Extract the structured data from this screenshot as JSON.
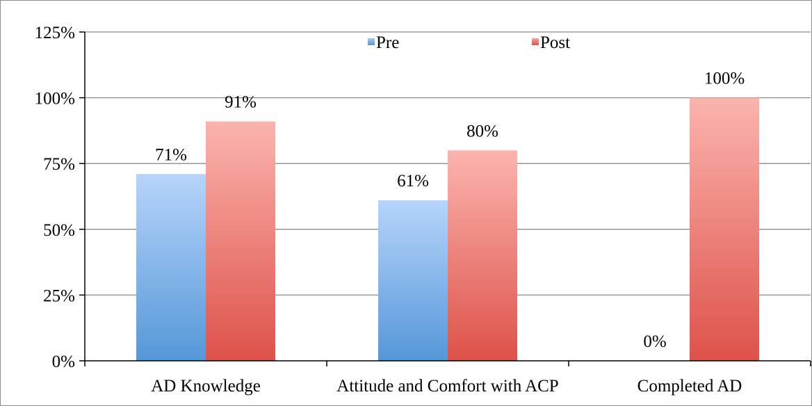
{
  "chart_data": {
    "type": "bar",
    "categories": [
      "AD Knowledge",
      "Attitude and Comfort with ACP",
      "Completed AD"
    ],
    "series": [
      {
        "name": "Pre",
        "values": [
          71,
          61,
          0
        ],
        "labels": [
          "71%",
          "61%",
          "0%"
        ],
        "color": "#5b9bd5"
      },
      {
        "name": "Post",
        "values": [
          91,
          80,
          100
        ],
        "labels": [
          "91%",
          "80%",
          "100%"
        ],
        "color": "#e0504a"
      }
    ],
    "yticks": [
      "0%",
      "25%",
      "50%",
      "75%",
      "100%",
      "125%"
    ],
    "ylim": [
      0,
      125
    ],
    "grid": true,
    "legend": "top"
  }
}
